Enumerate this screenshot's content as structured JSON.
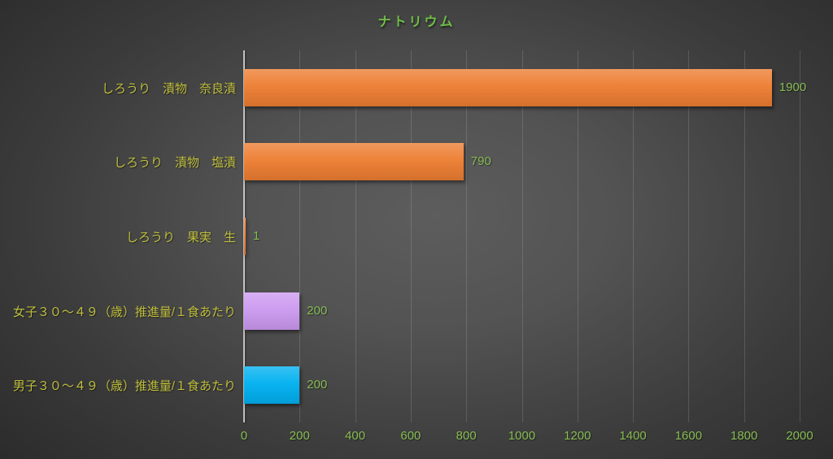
{
  "chart_data": {
    "type": "bar",
    "orientation": "horizontal",
    "title": "ナトリウム",
    "categories": [
      "しろうり　漬物　奈良漬",
      "しろうり　漬物　塩漬",
      "しろうり　果実　生",
      "女子３０～４９（歳）推進量/１食あたり",
      "男子３０～４９（歳）推進量/１食あたり"
    ],
    "values": [
      1900,
      790,
      1,
      200,
      200
    ],
    "data_labels": [
      "1900",
      "790",
      "1",
      "200",
      "200"
    ],
    "bar_colors": [
      "#ED7D31",
      "#ED7D31",
      "#ED7D31",
      "#CC99F0",
      "#00B0F0"
    ],
    "xlim": [
      0,
      2000
    ],
    "xticks": [
      0,
      200,
      400,
      600,
      800,
      1000,
      1200,
      1400,
      1600,
      1800,
      2000
    ],
    "grid": true,
    "legend": false
  },
  "colors": {
    "title_text": "#6FBF47",
    "category_text": "#BFBE3D",
    "value_text": "#87BD53",
    "tick_text": "#87BD53",
    "gridline": "rgba(255,255,255,0.14)",
    "axis_line": "rgba(235,235,235,0.75)"
  }
}
